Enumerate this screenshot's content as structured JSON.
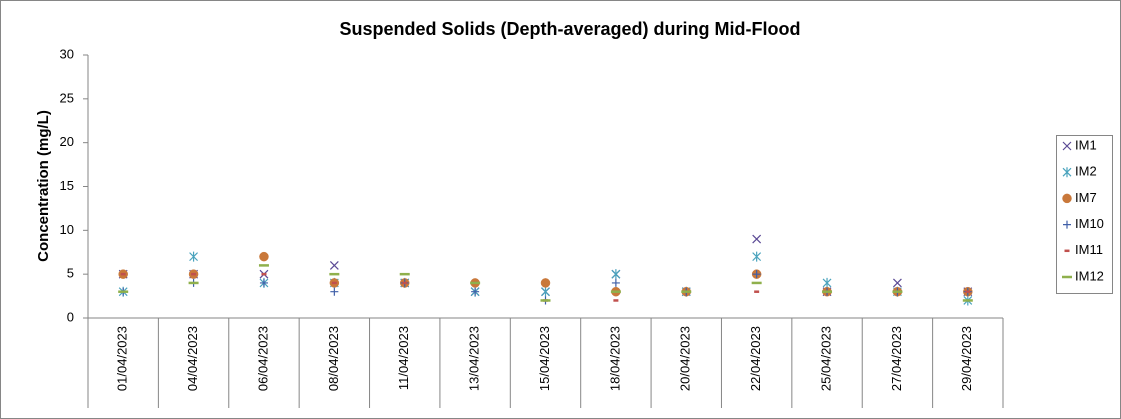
{
  "chart_data": {
    "type": "scatter",
    "title": "Suspended Solids (Depth-averaged) during Mid-Flood",
    "y_label": "Concentration (mg/L)",
    "categories": [
      "01/04/2023",
      "04/04/2023",
      "06/04/2023",
      "08/04/2023",
      "11/04/2023",
      "13/04/2023",
      "15/04/2023",
      "18/04/2023",
      "20/04/2023",
      "22/04/2023",
      "25/04/2023",
      "27/04/2023",
      "29/04/2023"
    ],
    "ylim": [
      0,
      30
    ],
    "yticks": [
      0,
      5,
      10,
      15,
      20,
      25,
      30
    ],
    "grid": false,
    "legend": "right",
    "series": [
      {
        "name": "IM1",
        "color": "#5b4a95",
        "marker": "x",
        "values": [
          5,
          5,
          5,
          6,
          4,
          3,
          3,
          5,
          3,
          9,
          3,
          4,
          3
        ]
      },
      {
        "name": "IM2",
        "color": "#4aa3bd",
        "marker": "asterisk",
        "values": [
          3,
          7,
          4,
          4,
          4,
          3,
          3,
          5,
          3,
          7,
          4,
          3,
          2
        ]
      },
      {
        "name": "IM7",
        "color": "#c9783a",
        "marker": "circle",
        "values": [
          5,
          5,
          7,
          4,
          4,
          4,
          4,
          3,
          3,
          5,
          3,
          3,
          3
        ]
      },
      {
        "name": "IM10",
        "color": "#3f5fa8",
        "marker": "plus",
        "values": [
          3,
          4,
          4,
          3,
          4,
          3,
          2,
          4,
          3,
          5,
          3,
          3,
          3
        ]
      },
      {
        "name": "IM11",
        "color": "#c0504d",
        "marker": "dash",
        "values": [
          5,
          5,
          5,
          4,
          4,
          4,
          2,
          2,
          3,
          3,
          3,
          3,
          3
        ]
      },
      {
        "name": "IM12",
        "color": "#8fb04c",
        "marker": "longdash",
        "values": [
          3,
          4,
          6,
          5,
          5,
          4,
          2,
          3,
          3,
          4,
          3,
          3,
          2
        ]
      }
    ]
  }
}
